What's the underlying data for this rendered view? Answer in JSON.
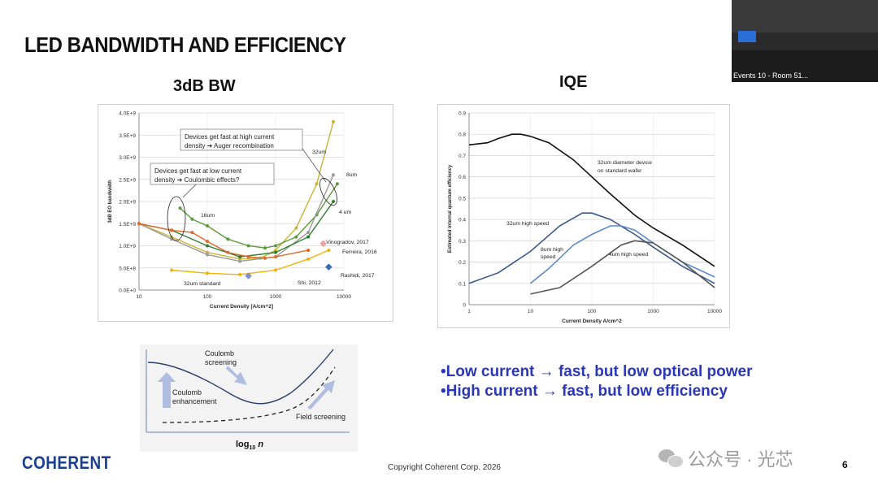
{
  "slide": {
    "title": "LED BANDWIDTH AND EFFICIENCY",
    "left_heading": "3dB BW",
    "right_heading": "IQE",
    "bullets": [
      "•Low current → fast, but low optical power",
      "•High current → fast, but low efficiency"
    ],
    "footer": "Copyright Coherent Corp. 2026",
    "page_number": "6",
    "logo_text": "COHERENT",
    "watermark_text": "公众号 · 光芯",
    "video_caption": "Events 10 - Room 51...",
    "colors": {
      "title": "#111111",
      "bullets": "#2a37b8",
      "logo": "#1a3f8f"
    }
  },
  "chart_data": [
    {
      "type": "line",
      "xlabel": "Current Density [A/cm^2]",
      "ylabel": "3dB EO bandwidth",
      "xscale": "log",
      "xlim": [
        10,
        10000
      ],
      "ylim": [
        0,
        4000000000
      ],
      "x_tick_labels": [
        "10",
        "100",
        "1000",
        "10000"
      ],
      "y_tick_labels": [
        "0.0E+0",
        "5.0E+8",
        "1.0E+9",
        "1.5E+9",
        "2.0E+9",
        "2.5E+9",
        "3.0E+9",
        "3.5E+9",
        "4.0E+9"
      ],
      "grid": true,
      "annotations": [
        "Devices get fast at high current",
        "density ➔ Auger recombination",
        "Devices get fast at low current",
        "density ➔ Coulombic effects?"
      ],
      "series": [
        {
          "name": "32um",
          "color": "#c8b43a",
          "x": [
            10,
            30,
            100,
            300,
            600,
            1000,
            2000,
            4000,
            7000
          ],
          "y": [
            1500000000,
            1200000000,
            850000000,
            700000000,
            720000000,
            900000000,
            1400000000,
            2400000000,
            3800000000
          ]
        },
        {
          "name": "16um",
          "color": "#5a9a3a",
          "x": [
            40,
            60,
            100,
            200,
            400,
            700,
            1000,
            2000,
            4000,
            8000
          ],
          "y": [
            1850000000,
            1600000000,
            1450000000,
            1150000000,
            1000000000,
            950000000,
            1000000000,
            1200000000,
            1700000000,
            2400000000
          ]
        },
        {
          "name": "8um",
          "color": "#9a9a9a",
          "x": [
            10,
            30,
            100,
            300,
            1000,
            3000,
            7000
          ],
          "y": [
            1500000000,
            1150000000,
            800000000,
            650000000,
            750000000,
            1300000000,
            2600000000
          ]
        },
        {
          "name": "4 um",
          "color": "#2e7f2e",
          "x": [
            10,
            30,
            100,
            300,
            1000,
            3000,
            7000
          ],
          "y": [
            1500000000,
            1350000000,
            1000000000,
            750000000,
            850000000,
            1200000000,
            2000000000
          ]
        },
        {
          "name": "Ferreira, 2016",
          "color": "#e06a2c",
          "x": [
            10,
            30,
            60,
            100,
            200,
            400,
            700,
            1000,
            3000
          ],
          "y": [
            1500000000,
            1350000000,
            1300000000,
            1100000000,
            850000000,
            750000000,
            720000000,
            750000000,
            900000000
          ]
        },
        {
          "name": "32um standard",
          "color": "#f0b400",
          "x": [
            30,
            100,
            300,
            1000,
            3000,
            6000
          ],
          "y": [
            450000000,
            380000000,
            350000000,
            450000000,
            700000000,
            900000000
          ]
        }
      ],
      "markers": [
        {
          "name": "Vinogradov, 2017",
          "color": "#f0a0a0",
          "x": 5000,
          "y": 1050000000
        },
        {
          "name": "Shi, 2012",
          "color": "#8090c8",
          "x": 400,
          "y": 320000000
        },
        {
          "name": "Rashidi, 2017",
          "color": "#3a6ab0",
          "x": 6000,
          "y": 520000000
        }
      ]
    },
    {
      "type": "line",
      "xlabel": "Current Density A/cm^2",
      "ylabel": "Estimated internal quantum efficiency",
      "xscale": "log",
      "xlim": [
        1,
        10000
      ],
      "ylim": [
        0,
        0.9
      ],
      "x_tick_labels": [
        "1",
        "10",
        "100",
        "1000",
        "10000"
      ],
      "y_tick_labels": [
        "0",
        "0.1",
        "0.2",
        "0.3",
        "0.4",
        "0.5",
        "0.6",
        "0.7",
        "0.8",
        "0.9"
      ],
      "grid": true,
      "series": [
        {
          "name": "32um diameter device on standard wafer",
          "color": "#111111",
          "x": [
            1,
            2,
            3,
            5,
            7,
            10,
            20,
            50,
            100,
            200,
            500,
            1000,
            3000,
            10000
          ],
          "y": [
            0.75,
            0.76,
            0.78,
            0.8,
            0.8,
            0.79,
            0.76,
            0.68,
            0.6,
            0.52,
            0.42,
            0.36,
            0.28,
            0.18
          ]
        },
        {
          "name": "32um high speed",
          "color": "#3a5a8a",
          "x": [
            1,
            3,
            10,
            30,
            70,
            100,
            200,
            500,
            1000,
            3000,
            10000
          ],
          "y": [
            0.1,
            0.15,
            0.25,
            0.37,
            0.43,
            0.43,
            0.4,
            0.33,
            0.27,
            0.18,
            0.1
          ]
        },
        {
          "name": "8um high speed",
          "color": "#5a8ac8",
          "x": [
            10,
            20,
            50,
            100,
            200,
            300,
            500,
            1000,
            3000,
            10000
          ],
          "y": [
            0.1,
            0.17,
            0.28,
            0.33,
            0.37,
            0.37,
            0.35,
            0.29,
            0.2,
            0.13
          ]
        },
        {
          "name": "4um high speed",
          "color": "#555555",
          "x": [
            10,
            30,
            100,
            300,
            500,
            1000,
            3000,
            10000
          ],
          "y": [
            0.05,
            0.08,
            0.18,
            0.28,
            0.3,
            0.29,
            0.2,
            0.08
          ]
        }
      ]
    }
  ],
  "sketch": {
    "labels": [
      "Coulomb screening",
      "Coulomb enhancement",
      "Field screening",
      "log10 n"
    ]
  }
}
